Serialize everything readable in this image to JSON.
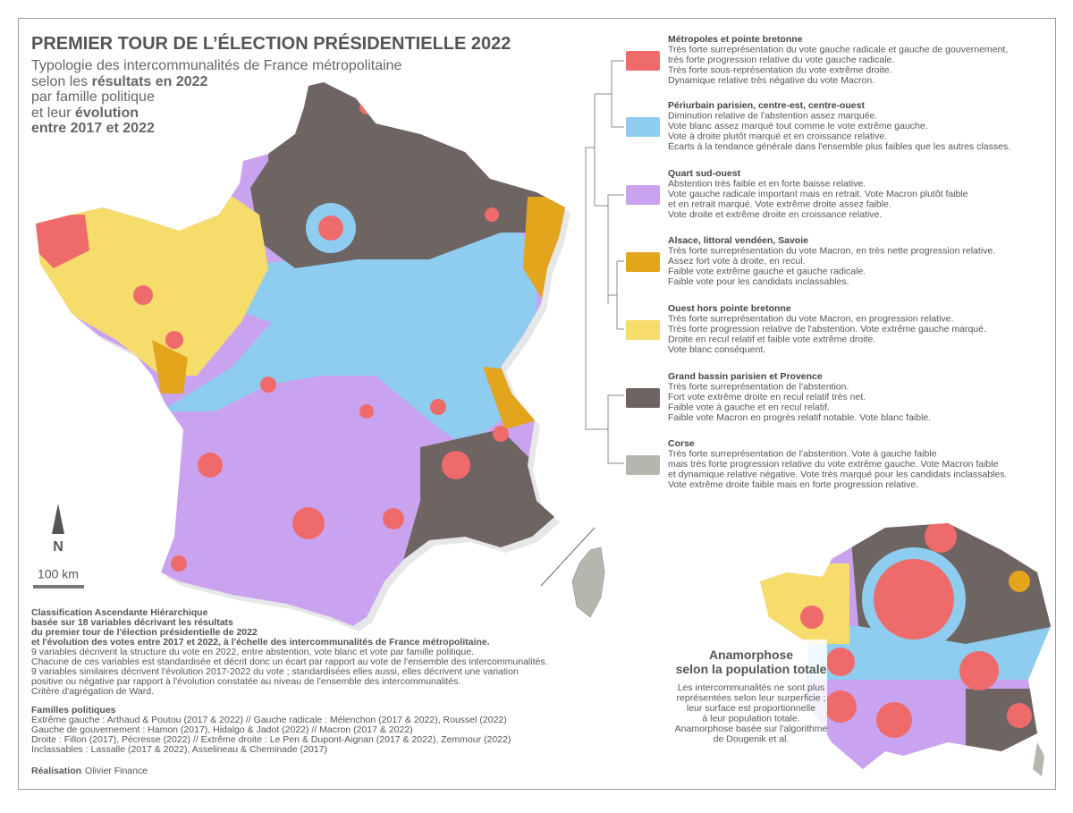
{
  "title": "PREMIER TOUR DE L’ÉLECTION PRÉSIDENTIELLE 2022",
  "subtitle": [
    [
      {
        "text": "Typologie des intercommunalités de France métropolitaine",
        "bold": false
      }
    ],
    [
      {
        "text": "selon les ",
        "bold": false
      },
      {
        "text": "résultats en 2022",
        "bold": true
      }
    ],
    [
      {
        "text": "par famille politique",
        "bold": false
      }
    ],
    [
      {
        "text": "et leur ",
        "bold": false
      },
      {
        "text": "évolution",
        "bold": true
      }
    ],
    [
      {
        "text": "entre 2017 et 2022",
        "bold": true
      }
    ]
  ],
  "legend": [
    {
      "title": "Métropoles et pointe bretonne",
      "color": "#ef6b6b",
      "lines": [
        "Très forte surreprésentation du vote gauche radicale et gauche de gouvernement,",
        "très forte progression relative du vote gauche radicale.",
        "Très forte sous-représentation du vote extrême droite.",
        "Dynamique relative très négative du vote Macron."
      ]
    },
    {
      "title": "Périurbain parisien, centre-est, centre-ouest",
      "color": "#8ecdf0",
      "lines": [
        "Diminution relative de l'abstention assez marquée.",
        "Vote blanc assez marqué tout comme le vote extrême gauche.",
        "Vote à droite plutôt marqué et en croissance relative.",
        "Écarts à la tendance générale dans l'ensemble plus faibles que les autres classes."
      ]
    },
    {
      "title": "Quart sud-ouest",
      "color": "#c9a3f0",
      "lines": [
        "Abstention très faible et en forte baisse relative.",
        "Vote gauche radicale important mais en retrait. Vote Macron plutôt faible",
        "et en retrait marqué. Vote extrême droite assez faible.",
        "Vote droite et extrême droite en croissance relative."
      ]
    },
    {
      "title": "Alsace, littoral vendéen, Savoie",
      "color": "#e2a51c",
      "lines": [
        "Très forte surreprésentation du vote Macron, en très nette progression relative.",
        "Assez fort vote à droite, en recul.",
        "Faible vote extrême gauche et gauche radicale.",
        "Faible vote pour les candidats inclassables."
      ]
    },
    {
      "title": "Ouest hors pointe bretonne",
      "color": "#f6dc6a",
      "lines": [
        "Très forte surreprésentation du vote Macron, en progression relative.",
        "Très forte progression relative de l'abstention. Vote extrême gauche marqué.",
        "Droite en recul relatif et faible vote extrême droite.",
        "Vote blanc conséquent."
      ]
    },
    {
      "title": "Grand bassin parisien et Provence",
      "color": "#6e6563",
      "lines": [
        "Très forte surreprésentation de l'abstention.",
        "Fort vote extrême droite en recul relatif très net.",
        "Faible vote à gauche et en recul relatif.",
        "Faible vote Macron en progrès relatif notable. Vote blanc faible."
      ]
    },
    {
      "title": "Corse",
      "color": "#b5b7af",
      "lines": [
        "Très forte surreprésentation de l'abstention. Vote à gauche faible",
        "mais très forte progression relative du vote extrême gauche. Vote Macron faible",
        "et dynamique relative négative. Vote très marqué pour les candidats inclassables.",
        "Vote extrême droite faible mais en forte progression relative."
      ]
    }
  ],
  "north": "N",
  "scale": "100 km",
  "method": {
    "bold_lines": [
      "Classification Ascendante Hiérarchique",
      "basée sur 18 variables décrivant les résultats",
      "du premier tour de l'élection présidentielle de 2022",
      "et l'évolution des votes entre 2017 et 2022, à l'échelle des intercommunalités de France métropolitaine."
    ],
    "lines": [
      "9 variables décrivent la structure du vote en 2022, entre abstention, vote blanc et vote par famille politique.",
      "Chacune de ces variables est standardisée et décrit donc un écart par rapport au vote de l'ensemble des intercommunalités.",
      "9 variables similaires décrivent l'évolution 2017-2022 du vote ; standardisées elles aussi, elles décrivent une variation",
      "positive ou négative par rapport à l'évolution constatée au niveau de l'ensemble des intercommunalités.",
      "Critère d'agrégation de Ward."
    ]
  },
  "parties": {
    "title": "Familles politiques",
    "lines": [
      "Extrême gauche : Arthaud & Poutou (2017 & 2022) // Gauche radicale : Mélenchon (2017 & 2022), Roussel (2022)",
      "Gauche de gouvernement : Hamon (2017), Hidalgo & Jadot (2022) // Macron (2017 & 2022)",
      "Droite : Fillon (2017), Pécresse (2022) // Extrême droite : Le Pen & Dupont-Aignan (2017 & 2022), Zemmour (2022)",
      "Inclassables : Lassalle (2017 & 2022), Asselineau & Cheminade (2017)"
    ]
  },
  "credit": {
    "label": "Réalisation",
    "name": "Olivier Finance"
  },
  "inset": {
    "title": [
      "Anamorphose",
      "selon la population totale"
    ],
    "lines": [
      "Les intercommunalités ne sont plus",
      "représentées selon leur surperficie ;",
      "leur surface est proportionnelle",
      "à leur population totale.",
      "Anamorphose basée sur l'algorithme",
      "de Dougenik et al."
    ]
  }
}
